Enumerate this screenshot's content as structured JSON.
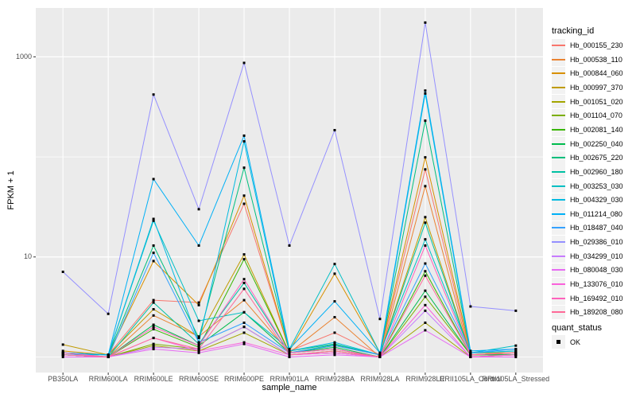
{
  "figure": {
    "y_axis": {
      "title": "FPKM + 1",
      "tick_labels": [
        "1000",
        "10"
      ]
    },
    "x_axis": {
      "title": "sample_name"
    },
    "legends": {
      "tracking": {
        "title": "tracking_id"
      },
      "quant": {
        "title": "quant_status",
        "ok_label": "OK"
      }
    }
  },
  "chart_data": {
    "type": "line",
    "title": "",
    "xlabel": "sample_name",
    "ylabel": "FPKM + 1",
    "yscale": "log10",
    "ylim": [
      0.7,
      3100
    ],
    "yticks_labeled": [
      10,
      1000
    ],
    "ytick_labels": [
      "10",
      "1000"
    ],
    "yticks_minor": [
      1,
      100
    ],
    "grid": "on",
    "legend_position": "right",
    "legend_title": "tracking_id",
    "quant_status_legend": {
      "title": "quant_status",
      "items": [
        "OK"
      ]
    },
    "point_color": "#000000",
    "panel_background": "#EBEBEB",
    "grid_color": "#FFFFFF",
    "x": [
      "PB350LA",
      "RRIM600LA",
      "RRIM600LE",
      "RRIM600SE",
      "RRIM600PE",
      "RRIM901LA",
      "RRIM928BA",
      "RRIM928LA",
      "RRIM928LE",
      "RRII105LA_Control",
      "RRII105LA_Stressed"
    ],
    "series": [
      {
        "name": "Hb_000155_230",
        "color": "#F8766D",
        "values": [
          1.1,
          1.05,
          3.7,
          3.5,
          34,
          1.15,
          1.75,
          1.05,
          75,
          1.05,
          1.1
        ]
      },
      {
        "name": "Hb_000538_110",
        "color": "#EA8331",
        "values": [
          1.05,
          1.0,
          2.6,
          1.6,
          3.7,
          1.1,
          2.5,
          1.0,
          51,
          1.0,
          1.05
        ]
      },
      {
        "name": "Hb_000844_060",
        "color": "#D89000",
        "values": [
          1.15,
          1.05,
          9.1,
          3.3,
          41,
          1.15,
          6.8,
          1.1,
          99,
          1.1,
          1.1
        ]
      },
      {
        "name": "Hb_000997_370",
        "color": "#C09B00",
        "values": [
          1.33,
          1.05,
          3.0,
          1.6,
          10.6,
          1.1,
          1.3,
          1.05,
          25,
          1.05,
          1.05
        ]
      },
      {
        "name": "Hb_001051_020",
        "color": "#A3A500",
        "values": [
          1.05,
          1.0,
          1.3,
          1.15,
          1.75,
          1.05,
          1.1,
          1.0,
          2.2,
          1.0,
          1.05
        ]
      },
      {
        "name": "Hb_001104_070",
        "color": "#7CAE00",
        "values": [
          1.1,
          1.0,
          1.35,
          1.2,
          2.0,
          1.05,
          1.15,
          1.0,
          4.0,
          1.05,
          1.05
        ]
      },
      {
        "name": "Hb_002081_140",
        "color": "#39B600",
        "values": [
          1.05,
          1.0,
          1.9,
          1.25,
          9.5,
          1.1,
          1.2,
          1.0,
          7.2,
          1.05,
          1.1
        ]
      },
      {
        "name": "Hb_002250_040",
        "color": "#00BB4E",
        "values": [
          1.05,
          1.0,
          2.1,
          1.3,
          2.8,
          1.1,
          1.25,
          1.0,
          4.6,
          1.05,
          1.05
        ]
      },
      {
        "name": "Hb_002675_220",
        "color": "#00BF7D",
        "values": [
          1.1,
          1.05,
          13,
          1.55,
          78,
          1.15,
          1.35,
          1.05,
          230,
          1.1,
          1.15
        ]
      },
      {
        "name": "Hb_002960_180",
        "color": "#00C1A3",
        "values": [
          1.05,
          1.0,
          3.5,
          1.35,
          5.5,
          1.1,
          1.33,
          1.05,
          22,
          1.05,
          1.1
        ]
      },
      {
        "name": "Hb_003253_030",
        "color": "#00BFC4",
        "values": [
          1.1,
          1.05,
          23,
          2.3,
          2.8,
          1.2,
          8.5,
          1.1,
          15,
          1.1,
          1.3
        ]
      },
      {
        "name": "Hb_004329_030",
        "color": "#00BAE0",
        "values": [
          1.05,
          1.05,
          24,
          1.4,
          143,
          1.15,
          1.4,
          1.05,
          430,
          1.1,
          1.15
        ]
      },
      {
        "name": "Hb_011214_080",
        "color": "#00B0F6",
        "values": [
          1.1,
          1.05,
          60,
          13,
          163,
          1.2,
          3.6,
          1.1,
          460,
          1.15,
          1.2
        ]
      },
      {
        "name": "Hb_018487_040",
        "color": "#35A2FF",
        "values": [
          1.05,
          1.0,
          11,
          1.4,
          2.2,
          1.1,
          1.3,
          1.05,
          8.6,
          1.1,
          1.2
        ]
      },
      {
        "name": "Hb_029386_010",
        "color": "#9590FF",
        "values": [
          7.1,
          2.7,
          420,
          30,
          870,
          13,
          185,
          2.4,
          2200,
          3.2,
          2.9
        ]
      },
      {
        "name": "Hb_034299_010",
        "color": "#C77CFF",
        "values": [
          1.05,
          1.0,
          1.25,
          1.2,
          2.0,
          1.05,
          1.1,
          1.0,
          2.9,
          1.0,
          1.05
        ]
      },
      {
        "name": "Hb_080048_030",
        "color": "#E76BF3",
        "values": [
          1.0,
          1.0,
          1.2,
          1.1,
          1.35,
          1.0,
          1.05,
          1.0,
          1.85,
          1.0,
          1.0
        ]
      },
      {
        "name": "Hb_133076_010",
        "color": "#FA62DB",
        "values": [
          1.05,
          1.0,
          1.55,
          1.15,
          1.4,
          1.05,
          1.1,
          1.0,
          3.3,
          1.0,
          1.05
        ]
      },
      {
        "name": "Hb_169492_010",
        "color": "#FF62BC",
        "values": [
          1.1,
          1.0,
          2.0,
          1.3,
          6.0,
          1.1,
          1.2,
          1.0,
          13,
          1.05,
          1.1
        ]
      },
      {
        "name": "Hb_189208_080",
        "color": "#FF6A98",
        "values": [
          1.05,
          1.0,
          1.55,
          1.2,
          4.8,
          1.05,
          1.15,
          1.0,
          6.5,
          1.05,
          1.1
        ]
      }
    ]
  }
}
